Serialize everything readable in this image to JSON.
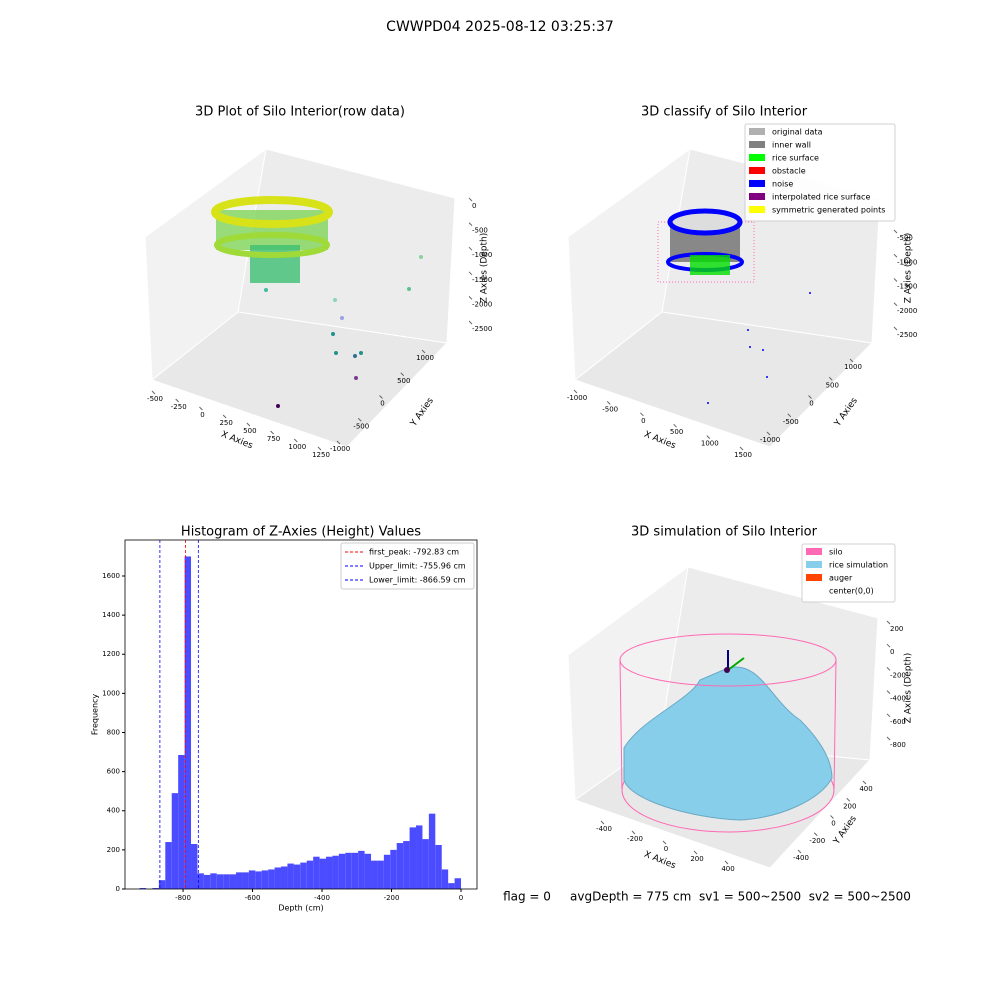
{
  "title": "CWWPD04 2025-08-12 03:25:37",
  "annotation": "flag = 0     avgDepth = 775 cm  sv1 = 500~2500  sv2 = 500~2500",
  "chart_data": [
    {
      "type": "scatter3d",
      "title": "3D Plot of Silo Interior(row data)",
      "xlabel": "X Axies",
      "ylabel": "Y Axies",
      "zlabel": "Z Axies (Depth)",
      "xticks": [
        -500,
        -250,
        0,
        250,
        500,
        750,
        1000,
        1250
      ],
      "yticks": [
        -1000,
        -500,
        0,
        500,
        1000
      ],
      "zticks": [
        0,
        -500,
        -1000,
        -1500,
        -2000,
        -2500
      ]
    },
    {
      "type": "scatter3d",
      "title": "3D classify of Silo Interior",
      "xlabel": "X Axies",
      "ylabel": "Y Axies",
      "zlabel": "Z Axies (Depth)",
      "xticks": [
        -1000,
        -500,
        0,
        500,
        1000,
        1500
      ],
      "yticks": [
        -1000,
        -500,
        0,
        500,
        1000
      ],
      "zticks": [
        -500,
        -1000,
        -1500,
        -2000,
        -2500
      ],
      "legend": [
        {
          "name": "original data",
          "color": "#b0b0b0"
        },
        {
          "name": "inner wall",
          "color": "#808080"
        },
        {
          "name": "rice surface",
          "color": "#00ff00"
        },
        {
          "name": "obstacle",
          "color": "#ff0000"
        },
        {
          "name": "noise",
          "color": "#0000ff"
        },
        {
          "name": "interpolated rice surface",
          "color": "#800080"
        },
        {
          "name": "symmetric generated points",
          "color": "#ffff00"
        }
      ]
    },
    {
      "type": "histogram",
      "title": "Histogram of Z-Axies (Height) Values",
      "xlabel": "Depth (cm)",
      "ylabel": "Frequency",
      "color": "#4b4bff",
      "bins": [
        -925,
        -906.5,
        -888,
        -869.5,
        -851,
        -832.5,
        -814,
        -795.5,
        -777,
        -758.5,
        -740,
        -721.5,
        -703,
        -684.5,
        -666,
        -647.5,
        -629,
        -610.5,
        -592,
        -573.5,
        -555,
        -536.5,
        -518,
        -499.5,
        -481,
        -462.5,
        -444,
        -425.5,
        -407,
        -388.5,
        -370,
        -351.5,
        -333,
        -314.5,
        -296,
        -277.5,
        -259,
        -240.5,
        -222,
        -203.5,
        -185,
        -166.5,
        -148,
        -129.5,
        -111,
        -92.5,
        -74,
        -55.5,
        -37,
        -18.5,
        0
      ],
      "values": [
        5,
        0,
        5,
        45,
        240,
        490,
        685,
        1700,
        230,
        80,
        72,
        80,
        75,
        75,
        75,
        85,
        85,
        95,
        90,
        95,
        100,
        110,
        115,
        130,
        125,
        135,
        145,
        165,
        155,
        165,
        170,
        180,
        185,
        185,
        195,
        180,
        145,
        145,
        175,
        200,
        235,
        245,
        315,
        325,
        255,
        385,
        225,
        100,
        30,
        55
      ],
      "vlines": [
        {
          "name": "first_peak: -792.83 cm",
          "value": -792.83,
          "color": "#ff0000"
        },
        {
          "name": "Upper_limit: -755.96 cm",
          "value": -755.96,
          "color": "#0000ff"
        },
        {
          "name": "Lower_limit: -866.59 cm",
          "value": -866.59,
          "color": "#0000ff"
        }
      ],
      "xlim": [
        -967,
        46
      ],
      "ylim": [
        0,
        1784
      ],
      "xticks": [
        -800,
        -600,
        -400,
        -200,
        0
      ],
      "yticks": [
        0,
        200,
        400,
        600,
        800,
        1000,
        1200,
        1400,
        1600
      ]
    },
    {
      "type": "surface3d",
      "title": "3D simulation of Silo Interior",
      "xlabel": "X Axies",
      "ylabel": "Y Axies",
      "zlabel": "Z Axies (Depth)",
      "xticks": [
        -400,
        -200,
        0,
        200,
        400
      ],
      "yticks": [
        -400,
        -200,
        0,
        200,
        400
      ],
      "zticks": [
        200,
        0,
        -200,
        -400,
        -600,
        -800
      ],
      "legend": [
        {
          "name": "silo",
          "color": "#ff69b4"
        },
        {
          "name": "rice simulation",
          "color": "#87ceeb"
        },
        {
          "name": "auger",
          "color": "#ff4500"
        },
        {
          "name": "center(0,0)",
          "color": "#ffffff"
        }
      ]
    }
  ]
}
